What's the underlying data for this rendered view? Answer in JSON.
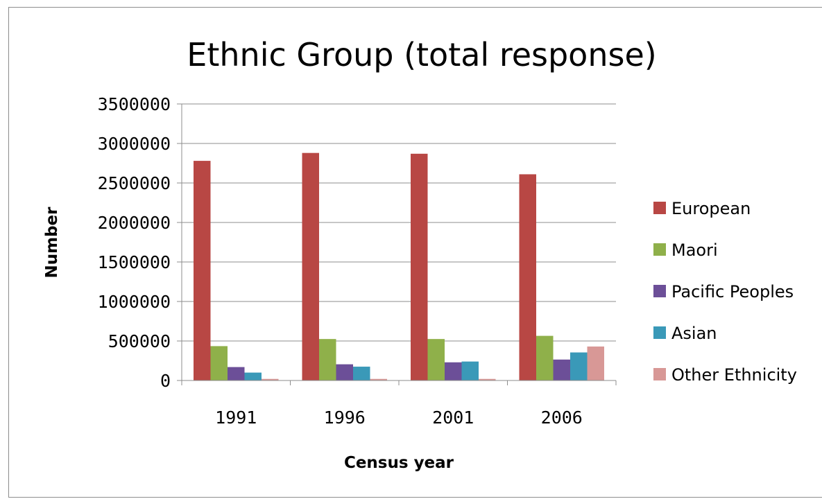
{
  "chart_data": {
    "type": "bar",
    "title": "Ethnic Group (total response)",
    "xlabel": "Census year",
    "ylabel": "Number",
    "categories": [
      "1991",
      "1996",
      "2001",
      "2006"
    ],
    "series": [
      {
        "name": "European",
        "color": "#b84744",
        "values": [
          2780000,
          2880000,
          2870000,
          2610000
        ]
      },
      {
        "name": "Maori",
        "color": "#8fb04a",
        "values": [
          435000,
          525000,
          525000,
          565000
        ]
      },
      {
        "name": "Pacific Peoples",
        "color": "#6c4f98",
        "values": [
          170000,
          205000,
          230000,
          265000
        ]
      },
      {
        "name": "Asian",
        "color": "#3a99b8",
        "values": [
          100000,
          175000,
          240000,
          355000
        ]
      },
      {
        "name": "Other Ethnicity",
        "color": "#d89896",
        "values": [
          20000,
          20000,
          20000,
          430000
        ]
      }
    ],
    "ylim": [
      0,
      3500000
    ],
    "yticks": [
      "0",
      "500000",
      "1000000",
      "1500000",
      "2000000",
      "2500000",
      "3000000",
      "3500000"
    ],
    "grid": true,
    "legend": "right"
  }
}
